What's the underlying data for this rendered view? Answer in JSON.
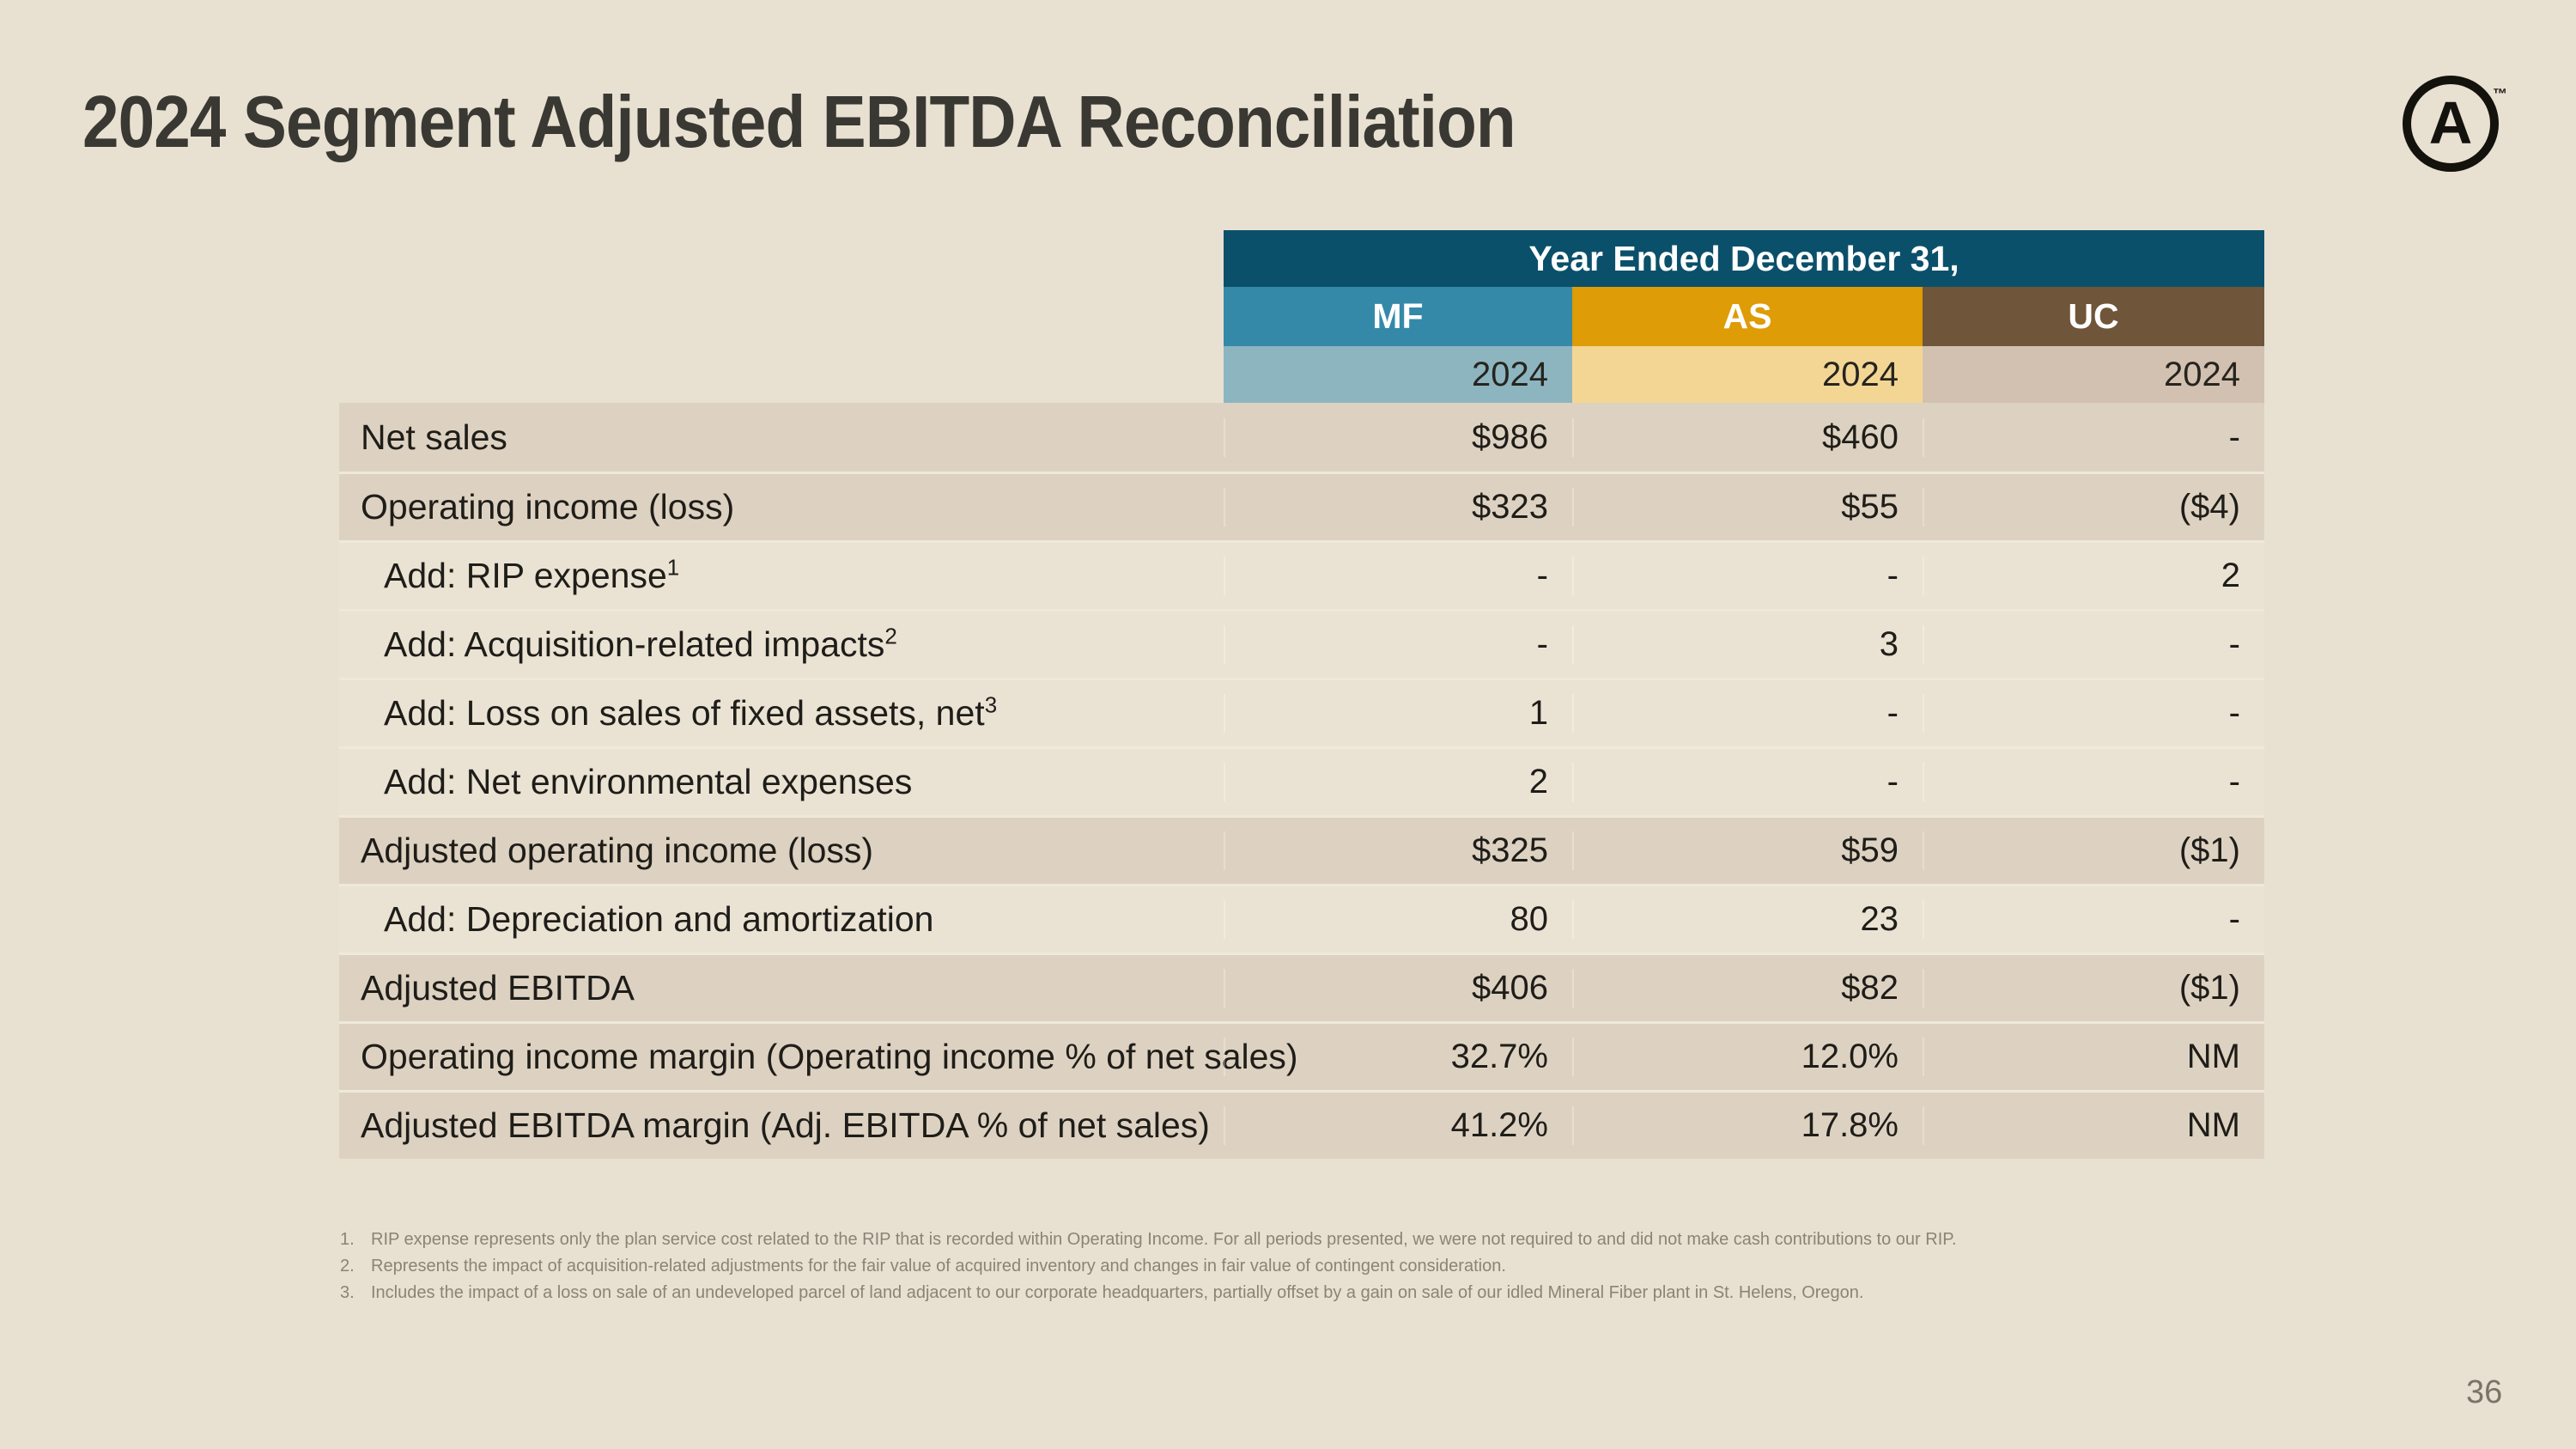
{
  "slide": {
    "title": "2024 Segment Adjusted EBITDA Reconciliation",
    "page_number": "36"
  },
  "logo": {
    "letter": "A",
    "trademark": "™"
  },
  "table": {
    "header_title": "Year Ended December 31,",
    "columns": [
      {
        "id": "mf",
        "label": "MF",
        "year": "2024",
        "color": "#3489a9",
        "light_color": "#8db5c0"
      },
      {
        "id": "as",
        "label": "AS",
        "year": "2024",
        "color": "#de9c06",
        "light_color": "#f4d694"
      },
      {
        "id": "uc",
        "label": "UC",
        "year": "2024",
        "color": "#6f5539",
        "light_color": "#d2c1b0"
      }
    ],
    "rows": [
      {
        "label": "Net sales",
        "sup": "",
        "indent": false,
        "band": "dark",
        "values": [
          "$986",
          "$460",
          "-"
        ]
      },
      {
        "label": "Operating income (loss)",
        "sup": "",
        "indent": false,
        "band": "dark",
        "values": [
          "$323",
          "$55",
          "($4)"
        ]
      },
      {
        "label": "Add: RIP expense",
        "sup": "1",
        "indent": true,
        "band": "light",
        "values": [
          "-",
          "-",
          "2"
        ]
      },
      {
        "label": "Add: Acquisition-related impacts",
        "sup": "2",
        "indent": true,
        "band": "light",
        "values": [
          "-",
          "3",
          "-"
        ]
      },
      {
        "label": "Add: Loss on sales of fixed assets, net",
        "sup": "3",
        "indent": true,
        "band": "light",
        "values": [
          "1",
          "-",
          "-"
        ]
      },
      {
        "label": "Add: Net environmental expenses",
        "sup": "",
        "indent": true,
        "band": "light",
        "values": [
          "2",
          "-",
          "-"
        ]
      },
      {
        "label": "Adjusted operating income (loss)",
        "sup": "",
        "indent": false,
        "band": "dark",
        "values": [
          "$325",
          "$59",
          "($1)"
        ]
      },
      {
        "label": "Add: Depreciation and amortization",
        "sup": "",
        "indent": true,
        "band": "light",
        "values": [
          "80",
          "23",
          "-"
        ]
      },
      {
        "label": "Adjusted EBITDA",
        "sup": "",
        "indent": false,
        "band": "dark",
        "values": [
          "$406",
          "$82",
          "($1)"
        ]
      },
      {
        "label": "Operating income margin (Operating income % of net sales)",
        "sup": "",
        "indent": false,
        "band": "dark",
        "values": [
          "32.7%",
          "12.0%",
          "NM"
        ]
      },
      {
        "label": "Adjusted EBITDA margin (Adj. EBITDA % of net sales)",
        "sup": "",
        "indent": false,
        "band": "dark",
        "values": [
          "41.2%",
          "17.8%",
          "NM"
        ]
      }
    ]
  },
  "footnotes": [
    {
      "num": "1.",
      "text": "RIP expense represents only the plan service cost related to the RIP that is recorded within Operating Income. For all periods presented, we were not required to and did not make cash contributions to our RIP."
    },
    {
      "num": "2.",
      "text": "Represents the impact of acquisition-related adjustments for the fair value of acquired inventory and changes in fair value of contingent consideration."
    },
    {
      "num": "3.",
      "text": "Includes the impact of a loss on sale of an undeveloped parcel of land adjacent to our corporate headquarters, partially offset by a gain on sale of our idled Mineral Fiber plant in St. Helens, Oregon."
    }
  ],
  "colors": {
    "background": "#e8e1d2",
    "header_teal": "#0b506a",
    "band_dark": "#ddd2c1",
    "band_light": "#eae3d3",
    "separator": "#efe9dc",
    "title_text": "#3a3832",
    "body_text": "#1f1d19",
    "footnote_text": "#8a8476",
    "page_text": "#7a7468",
    "logo_black": "#14120d"
  }
}
